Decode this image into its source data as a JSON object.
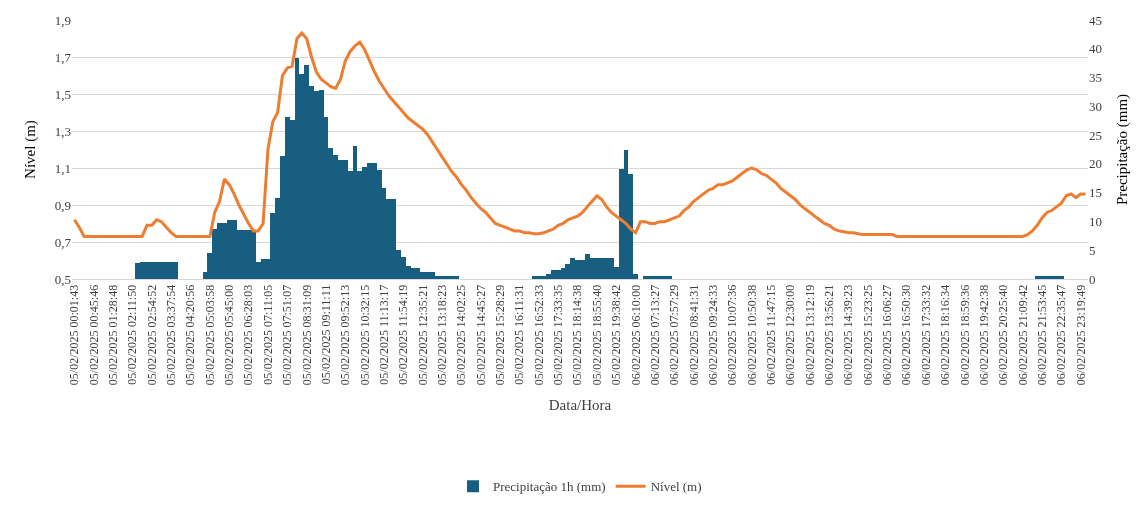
{
  "chart_data": {
    "type": "bar",
    "xlabel": "Data/Hora",
    "ylabel": "Nível (m)",
    "y2label": "Precipitação (mm)",
    "categories": [
      "05/02/2025 00:01:43",
      null,
      null,
      null,
      "05/02/2025 00:45:46",
      null,
      null,
      null,
      "05/02/2025 01:28:48",
      null,
      null,
      null,
      "05/02/2025 02:11:50",
      null,
      null,
      null,
      "05/02/2025 02:54:52",
      null,
      null,
      null,
      "05/02/2025 03:37:54",
      null,
      null,
      null,
      "05/02/2025 04:20:56",
      null,
      null,
      null,
      "05/02/2025 05:03:58",
      null,
      null,
      null,
      "05/02/2025 05:45:00",
      null,
      null,
      null,
      "05/02/2025 06:28:03",
      null,
      null,
      null,
      "05/02/2025 07:11:05",
      null,
      null,
      null,
      "05/02/2025 07:51:07",
      null,
      null,
      null,
      "05/02/2025 08:31:09",
      null,
      null,
      null,
      "05/02/2025 09:11:11",
      null,
      null,
      null,
      "05/02/2025 09:52:13",
      null,
      null,
      null,
      "05/02/2025 10:32:15",
      null,
      null,
      null,
      "05/02/2025 11:13:17",
      null,
      null,
      null,
      "05/02/2025 11:54:19",
      null,
      null,
      null,
      "05/02/2025 12:35:21",
      null,
      null,
      null,
      "05/02/2025 13:18:23",
      null,
      null,
      null,
      "05/02/2025 14:02:25",
      null,
      null,
      null,
      "05/02/2025 14:45:27",
      null,
      null,
      null,
      "05/02/2025 15:28:29",
      null,
      null,
      null,
      "05/02/2025 16:11:31",
      null,
      null,
      null,
      "05/02/2025 16:52:33",
      null,
      null,
      null,
      "05/02/2025 17:33:35",
      null,
      null,
      null,
      "05/02/2025 18:14:38",
      null,
      null,
      null,
      "05/02/2025 18:55:40",
      null,
      null,
      null,
      "05/02/2025 19:38:42",
      null,
      null,
      null,
      "06/02/2025 06:10:00",
      null,
      null,
      null,
      "06/02/2025 07:13:27",
      null,
      null,
      null,
      "06/02/2025 07:57:29",
      null,
      null,
      null,
      "06/02/2025 08:41:31",
      null,
      null,
      null,
      "06/02/2025 09:24:33",
      null,
      null,
      null,
      "06/02/2025 10:07:36",
      null,
      null,
      null,
      "06/02/2025 10:50:38",
      null,
      null,
      null,
      "06/02/2025 11:47:15",
      null,
      null,
      null,
      "06/02/2025 12:30:00",
      null,
      null,
      null,
      "06/02/2025 13:12:19",
      null,
      null,
      null,
      "06/02/2025 13:56:21",
      null,
      null,
      null,
      "06/02/2025 14:39:23",
      null,
      null,
      null,
      "06/02/2025 15:23:25",
      null,
      null,
      null,
      "06/02/2025 16:06:27",
      null,
      null,
      null,
      "06/02/2025 16:50:30",
      null,
      null,
      null,
      "06/02/2025 17:33:32",
      null,
      null,
      null,
      "06/02/2025 18:16:34",
      null,
      null,
      null,
      "06/02/2025 18:59:36",
      null,
      null,
      null,
      "06/02/2025 19:42:38",
      null,
      null,
      null,
      "06/02/2025 20:25:40",
      null,
      null,
      null,
      "06/02/2025 21:09:42",
      null,
      null,
      null,
      "06/02/2025 21:53:45",
      null,
      null,
      null,
      "06/02/2025 22:35:47",
      null,
      null,
      null,
      "06/02/2025 23:19:49",
      null
    ],
    "series": [
      {
        "name": "Precipitação 1h (mm)",
        "color": "#175e80",
        "axis": "y2",
        "values": [
          null,
          null,
          null,
          null,
          null,
          null,
          null,
          null,
          null,
          null,
          null,
          null,
          null,
          2.8,
          3.0,
          3.0,
          3.0,
          3.0,
          3.0,
          3.0,
          3.0,
          3.0,
          null,
          null,
          null,
          null,
          null,
          1.3,
          4.6,
          8.7,
          9.7,
          9.7,
          10.3,
          10.3,
          8.6,
          8.6,
          8.6,
          8.6,
          2.9,
          3.5,
          3.5,
          11.5,
          14.1,
          21.3,
          28.2,
          27.6,
          38.4,
          35.6,
          37.2,
          33.6,
          32.6,
          32.9,
          28.2,
          22.8,
          21.6,
          20.7,
          20.7,
          18.7,
          23.1,
          18.8,
          19.4,
          20.2,
          20.2,
          19.0,
          15.8,
          13.9,
          13.9,
          5.0,
          3.8,
          2.3,
          1.9,
          1.9,
          1.2,
          1.2,
          1.2,
          0.5,
          0.5,
          0.5,
          0.5,
          0.5,
          null,
          null,
          null,
          null,
          null,
          null,
          null,
          null,
          null,
          null,
          null,
          null,
          null,
          null,
          null,
          0.5,
          0.5,
          0.5,
          0.8,
          1.5,
          1.5,
          1.9,
          2.6,
          3.6,
          3.3,
          3.3,
          4.3,
          3.6,
          3.6,
          3.6,
          3.6,
          3.6,
          2.1,
          19.1,
          22.5,
          18.3,
          0.9,
          null,
          0.5,
          0.5,
          0.5,
          0.5,
          0.5,
          0.5,
          null,
          null,
          null,
          null,
          null,
          null,
          null,
          null,
          null,
          null,
          null,
          null,
          null,
          null,
          null,
          null,
          null,
          null,
          null,
          null,
          null,
          null,
          null,
          null,
          null,
          null,
          null,
          null,
          null,
          null,
          null,
          null,
          null,
          null,
          null,
          null,
          null,
          null,
          null,
          null,
          null,
          null,
          null,
          null,
          null,
          null,
          null,
          null,
          null,
          null,
          null,
          null,
          null,
          null,
          null,
          null,
          null,
          null,
          null,
          null,
          null,
          null,
          null,
          null,
          null,
          null,
          null,
          null,
          null,
          null,
          null,
          null,
          null,
          null,
          null,
          0.5,
          0.5,
          0.6,
          0.6,
          0.6,
          0.6,
          null,
          null,
          null,
          null,
          null
        ]
      },
      {
        "name": "Nível (m)",
        "color": "#ed7d31",
        "type": "line",
        "values": [
          0.82,
          0.78,
          0.73,
          0.73,
          0.73,
          0.73,
          0.73,
          0.73,
          0.73,
          0.73,
          0.73,
          0.73,
          0.73,
          0.73,
          0.73,
          0.79,
          0.79,
          0.82,
          0.81,
          0.78,
          0.75,
          0.73,
          0.73,
          0.73,
          0.73,
          0.73,
          0.73,
          0.73,
          0.73,
          0.86,
          0.92,
          1.04,
          1.01,
          0.96,
          0.9,
          0.85,
          0.8,
          0.76,
          0.76,
          0.8,
          1.2,
          1.35,
          1.4,
          1.6,
          1.64,
          1.65,
          1.8,
          1.83,
          1.8,
          1.7,
          1.62,
          1.58,
          1.56,
          1.54,
          1.53,
          1.58,
          1.68,
          1.73,
          1.76,
          1.78,
          1.74,
          1.68,
          1.62,
          1.57,
          1.53,
          1.49,
          1.46,
          1.43,
          1.4,
          1.37,
          1.35,
          1.33,
          1.31,
          1.28,
          1.24,
          1.2,
          1.16,
          1.12,
          1.08,
          1.05,
          1.01,
          0.98,
          0.94,
          0.91,
          0.88,
          0.86,
          0.83,
          0.8,
          0.79,
          0.78,
          0.77,
          0.76,
          0.76,
          0.75,
          0.75,
          0.745,
          0.745,
          0.75,
          0.76,
          0.77,
          0.79,
          0.8,
          0.82,
          0.83,
          0.84,
          0.86,
          0.89,
          0.92,
          0.95,
          0.93,
          0.89,
          0.86,
          0.84,
          0.82,
          0.8,
          0.77,
          0.75,
          0.81,
          0.81,
          0.8,
          0.8,
          0.81,
          0.81,
          0.82,
          0.83,
          0.84,
          0.87,
          0.89,
          0.92,
          0.94,
          0.96,
          0.98,
          0.99,
          1.01,
          1.01,
          1.02,
          1.03,
          1.05,
          1.07,
          1.09,
          1.1,
          1.09,
          1.07,
          1.06,
          1.04,
          1.02,
          0.99,
          0.97,
          0.95,
          0.93,
          0.9,
          0.88,
          0.86,
          0.84,
          0.82,
          0.8,
          0.79,
          0.77,
          0.76,
          0.755,
          0.75,
          0.75,
          0.745,
          0.74,
          0.74,
          0.74,
          0.74,
          0.74,
          0.74,
          0.74,
          0.73,
          0.73,
          0.73,
          0.73,
          0.73,
          0.73,
          0.73,
          0.73,
          0.73,
          0.73,
          0.73,
          0.73,
          0.73,
          0.73,
          0.73,
          0.73,
          0.73,
          0.73,
          0.73,
          0.73,
          0.73,
          0.73,
          0.73,
          0.73,
          0.73,
          0.73,
          0.73,
          0.74,
          0.76,
          0.79,
          0.83,
          0.86,
          0.87,
          0.89,
          0.91,
          0.95,
          0.96,
          0.94,
          0.96,
          0.96
        ]
      }
    ],
    "ylim": [
      0.5,
      1.9
    ],
    "yticks": [
      {
        "value": 0.5,
        "label": "0,5"
      },
      {
        "value": 0.7,
        "label": "0,7"
      },
      {
        "value": 0.9,
        "label": "0,9"
      },
      {
        "value": 1.1,
        "label": "1,1"
      },
      {
        "value": 1.3,
        "label": "1,3"
      },
      {
        "value": 1.5,
        "label": "1,5"
      },
      {
        "value": 1.7,
        "label": "1,7"
      },
      {
        "value": 1.9,
        "label": "1,9"
      }
    ],
    "y2lim": [
      0,
      45
    ],
    "y2ticks": [
      0,
      5,
      10,
      15,
      20,
      25,
      30,
      35,
      40,
      45
    ],
    "grid": "y",
    "legend": "bottom",
    "marker": "none",
    "line_style": "solid"
  }
}
